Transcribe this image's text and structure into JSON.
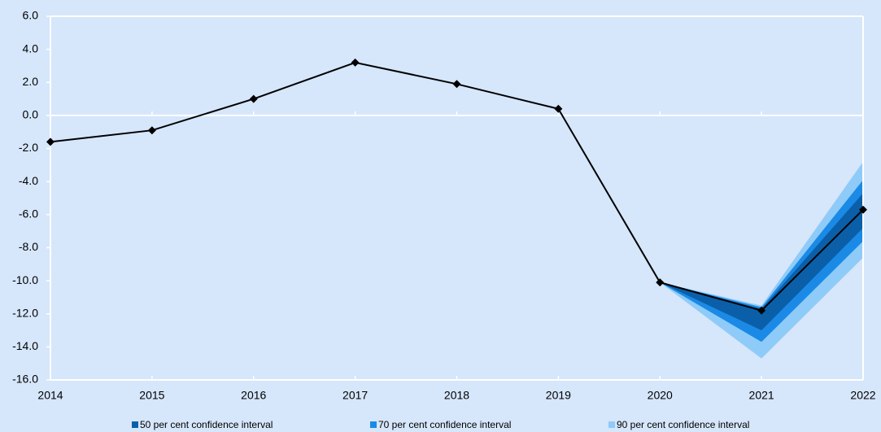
{
  "chart_data": {
    "type": "fan",
    "x": [
      2014,
      2015,
      2016,
      2017,
      2018,
      2019,
      2020,
      2021,
      2022
    ],
    "values": [
      -1.6,
      -0.9,
      1.0,
      3.2,
      1.9,
      0.4,
      -10.1,
      -11.8,
      -5.7
    ],
    "color": "#000000",
    "series": [
      {
        "name": "50 per cent confidence interval",
        "color": "#0b5fa8",
        "lower": [
          null,
          null,
          null,
          null,
          null,
          null,
          -10.1,
          -13.0,
          -6.8
        ],
        "upper": [
          null,
          null,
          null,
          null,
          null,
          null,
          -10.1,
          -11.7,
          -4.7
        ]
      },
      {
        "name": "70 per cent confidence interval",
        "color": "#1a8ae6",
        "lower": [
          null,
          null,
          null,
          null,
          null,
          null,
          -10.1,
          -13.7,
          -7.6
        ],
        "upper": [
          null,
          null,
          null,
          null,
          null,
          null,
          -10.1,
          -11.6,
          -3.9
        ]
      },
      {
        "name": "90 per cent confidence interval",
        "color": "#8fcbf8",
        "lower": [
          null,
          null,
          null,
          null,
          null,
          null,
          -10.1,
          -14.7,
          -8.6
        ],
        "upper": [
          null,
          null,
          null,
          null,
          null,
          null,
          -10.1,
          -11.5,
          -2.8
        ]
      }
    ],
    "xlim": [
      2014,
      2022
    ],
    "xticks": [
      2014,
      2015,
      2016,
      2017,
      2018,
      2019,
      2020,
      2021,
      2022
    ],
    "ylim": [
      -16,
      6
    ],
    "yticks": [
      {
        "value": 6,
        "label": "6.0"
      },
      {
        "value": 4,
        "label": "4.0"
      },
      {
        "value": 2,
        "label": "2.0"
      },
      {
        "value": 0,
        "label": "0.0"
      },
      {
        "value": -2,
        "label": "-2.0"
      },
      {
        "value": -4,
        "label": "-4.0"
      },
      {
        "value": -6,
        "label": "-6.0"
      },
      {
        "value": -8,
        "label": "-8.0"
      },
      {
        "value": -10,
        "label": "-10.0"
      },
      {
        "value": -12,
        "label": "-12.0"
      },
      {
        "value": -14,
        "label": "-14.0"
      },
      {
        "value": -16,
        "label": "-16.0"
      }
    ],
    "legend": "bottom"
  }
}
